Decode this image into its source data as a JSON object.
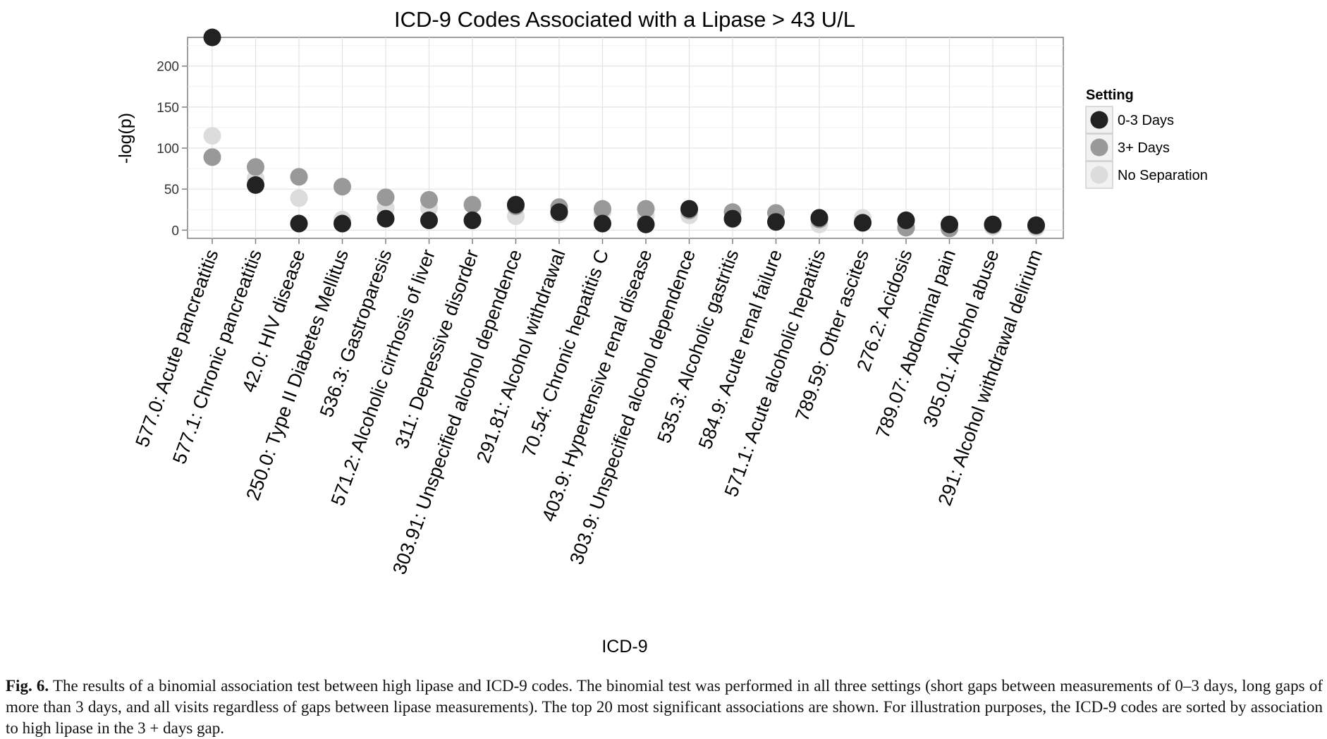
{
  "chart_data": {
    "type": "scatter",
    "title": "ICD-9 Codes Associated with a Lipase > 43 U/L",
    "xlabel": "ICD-9",
    "ylabel": "-log(p)",
    "ylim": [
      -10,
      235
    ],
    "yticks": [
      "0",
      "50",
      "100",
      "150",
      "200"
    ],
    "grid": true,
    "legend": {
      "title": "Setting",
      "position": "right"
    },
    "categories": [
      "577.0: Acute pancreatitis",
      "577.1: Chronic pancreatitis",
      "42.0: HIV disease",
      "250.0: Type II Diabetes Mellitus",
      "536.3: Gastroparesis",
      "571.2: Alcoholic cirrhosis of liver",
      "311: Depressive disorder",
      "303.91: Unspecified alcohol dependence",
      "291.81: Alcohol withdrawal",
      "70.54: Chronic hepatitis C",
      "403.9: Hypertensive renal disease",
      "303.9: Unspecified alcohol dependence",
      "535.3: Alcoholic gastritis",
      "584.9: Acute renal failure",
      "571.1: Acute alcoholic hepatitis",
      "789.59: Other ascites",
      "276.2: Acidosis",
      "789.07: Abdominal pain",
      "305.01: Alcohol abuse",
      "291: Alcohol withdrawal delirium"
    ],
    "series": [
      {
        "name": "No Separation",
        "color": "#dcdcdc",
        "values": [
          115,
          63,
          39,
          13,
          27,
          27,
          12,
          17,
          19,
          22,
          18,
          18,
          13,
          11,
          7,
          15,
          3,
          5,
          4,
          3
        ]
      },
      {
        "name": "3+ Days",
        "color": "#999999",
        "values": [
          89,
          77,
          65,
          53,
          40,
          37,
          31,
          29,
          28,
          26,
          26,
          24,
          22,
          21,
          13,
          9,
          3,
          2,
          6,
          5
        ]
      },
      {
        "name": "0-3 Days",
        "color": "#222222",
        "values": [
          235,
          55,
          8,
          8,
          14,
          12,
          12,
          31,
          22,
          8,
          7,
          26,
          14,
          10,
          15,
          9,
          12,
          7,
          7,
          6
        ]
      }
    ],
    "legend_labels": [
      "0-3 Days",
      "3+ Days",
      "No Separation"
    ],
    "legend_colors": [
      "#222222",
      "#999999",
      "#dcdcdc"
    ]
  },
  "caption": {
    "label": "Fig. 6.",
    "text": " The results of a binomial association test between high lipase and ICD-9 codes. The binomial test was performed in all three settings (short gaps between measurements of 0–3 days, long gaps of more than 3 days, and all visits regardless of gaps between lipase measurements). The top 20 most significant associations are shown. For illustration purposes, the ICD-9 codes are sorted by association to high lipase in the 3 + days gap."
  }
}
